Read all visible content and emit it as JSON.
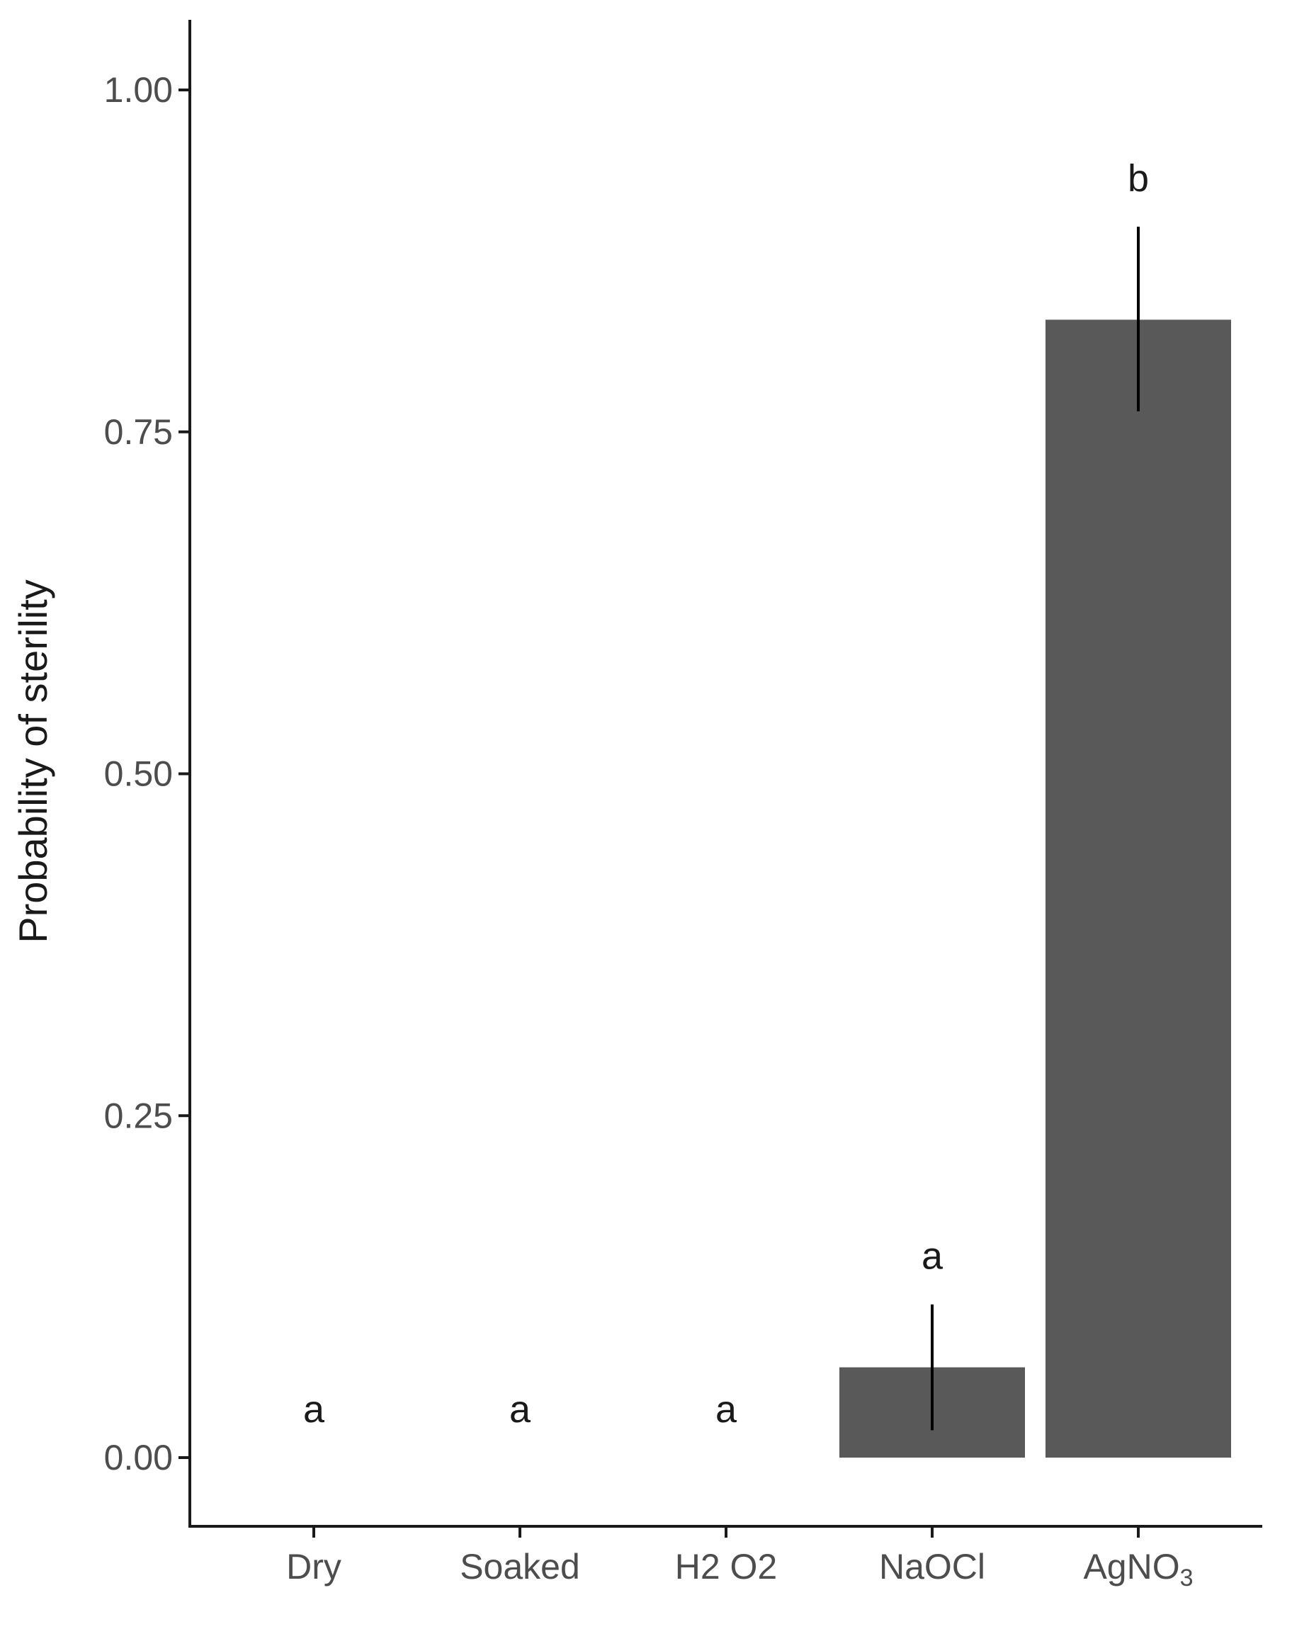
{
  "colors": {
    "bar": "#595959",
    "axis": "#1a1a1a",
    "tick_text": "#4d4d4d",
    "background": "#ffffff"
  },
  "chart_data": {
    "type": "bar",
    "ylabel": "Probability of sterility",
    "xlabel": "",
    "ylim": [
      0,
      1.05
    ],
    "y_ticks": [
      {
        "value": 0,
        "label": "0.00"
      },
      {
        "value": 0.25,
        "label": "0.25"
      },
      {
        "value": 0.5,
        "label": "0.50"
      },
      {
        "value": 0.75,
        "label": "0.75"
      },
      {
        "value": 1,
        "label": "1.00"
      }
    ],
    "categories": [
      {
        "id": "dry",
        "label": "Dry",
        "sub": ""
      },
      {
        "id": "soaked",
        "label": "Soaked",
        "sub": ""
      },
      {
        "id": "h2o2",
        "label": "H2 O2",
        "sub": ""
      },
      {
        "id": "naocl",
        "label": "NaOCl",
        "sub": ""
      },
      {
        "id": "agno3",
        "label": "AgNO",
        "sub": "3"
      }
    ],
    "values": [
      0,
      0,
      0,
      0.066,
      0.832
    ],
    "error_low": [
      null,
      null,
      null,
      0.02,
      0.765
    ],
    "error_high": [
      null,
      null,
      null,
      0.112,
      0.9
    ],
    "group_letters": [
      "a",
      "a",
      "a",
      "a",
      "b"
    ],
    "grid": false,
    "legend": "none"
  }
}
